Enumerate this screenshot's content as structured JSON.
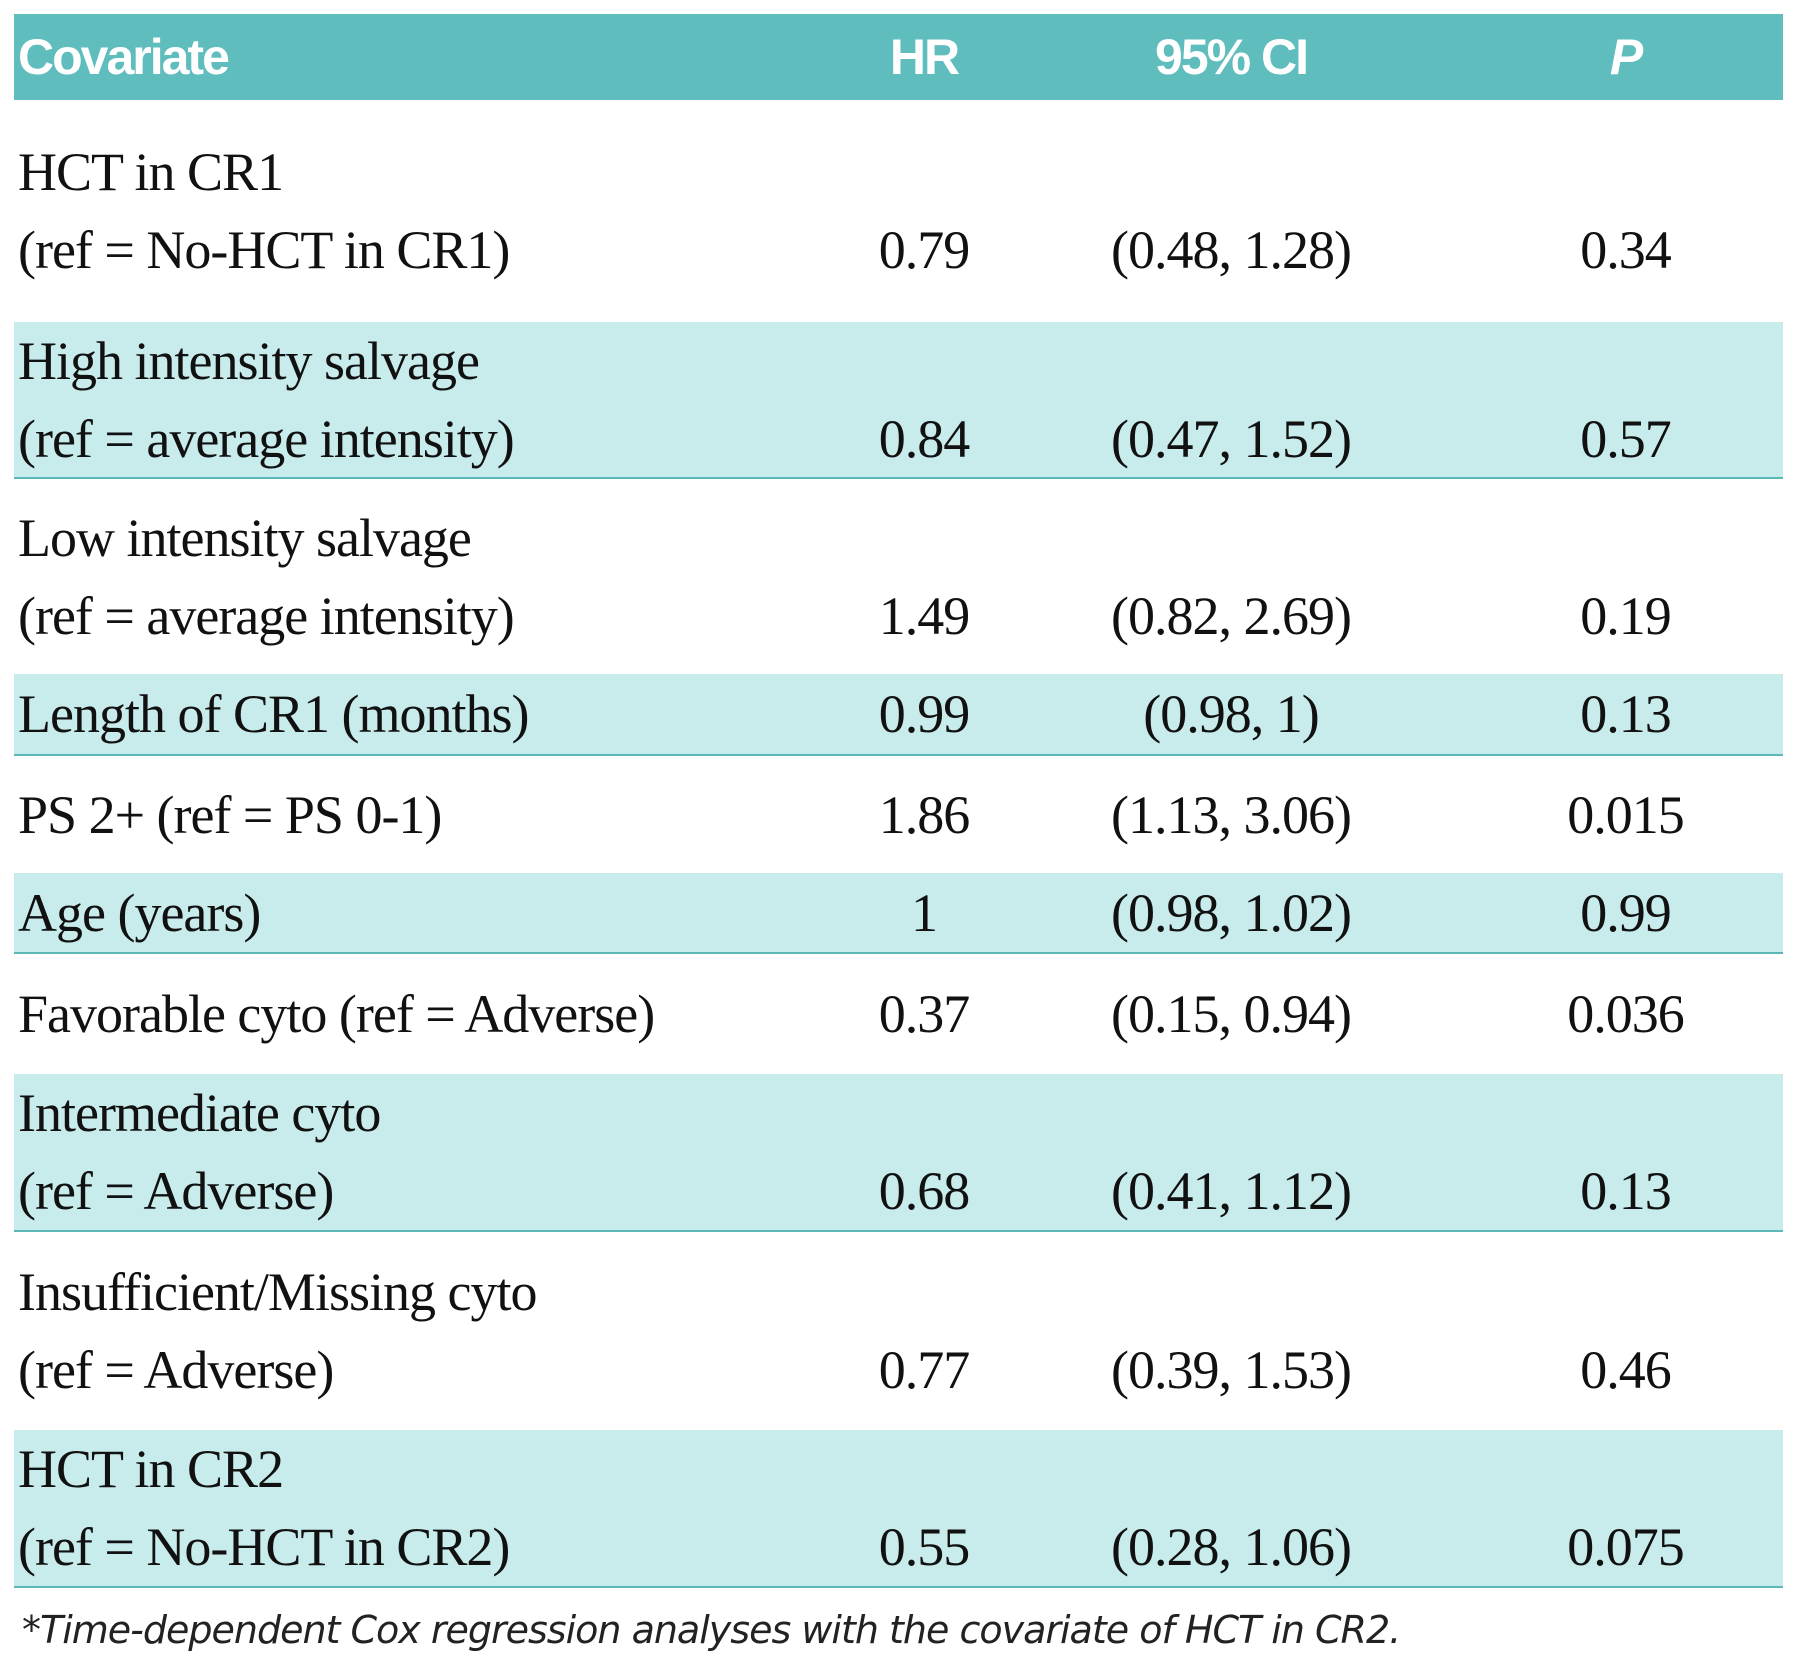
{
  "table": {
    "header": [
      "Covariate",
      "HR",
      "95% CI",
      "P"
    ],
    "rows": [
      {
        "covariate": [
          "HCT in CR1",
          "(ref = No-HCT in CR1)"
        ],
        "hr": "0.79",
        "ci": "(0.48, 1.28)",
        "p": "0.34"
      },
      {
        "covariate": [
          "High intensity salvage",
          "(ref = average intensity)"
        ],
        "hr": "0.84",
        "ci": "(0.47, 1.52)",
        "p": "0.57"
      },
      {
        "covariate": [
          "Low intensity salvage",
          "(ref = average intensity)"
        ],
        "hr": "1.49",
        "ci": "(0.82, 2.69)",
        "p": "0.19"
      },
      {
        "covariate": [
          "Length of CR1 (months)"
        ],
        "hr": "0.99",
        "ci": "(0.98, 1)",
        "p": "0.13"
      },
      {
        "covariate": [
          "PS 2+ (ref = PS 0-1)"
        ],
        "hr": "1.86",
        "ci": "(1.13, 3.06)",
        "p": "0.015"
      },
      {
        "covariate": [
          "Age (years)"
        ],
        "hr": "1",
        "ci": "(0.98, 1.02)",
        "p": "0.99"
      },
      {
        "covariate": [
          "Favorable cyto (ref = Adverse)"
        ],
        "hr": "0.37",
        "ci": "(0.15, 0.94)",
        "p": "0.036"
      },
      {
        "covariate": [
          "Intermediate cyto",
          "(ref = Adverse)"
        ],
        "hr": "0.68",
        "ci": "(0.41, 1.12)",
        "p": "0.13"
      },
      {
        "covariate": [
          "Insufficient/Missing cyto",
          "(ref = Adverse)"
        ],
        "hr": "0.77",
        "ci": "(0.39, 1.53)",
        "p": "0.46"
      },
      {
        "covariate": [
          "HCT in CR2",
          "(ref = No-HCT in CR2)"
        ],
        "hr": "0.55",
        "ci": "(0.28, 1.06)",
        "p": "0.075"
      }
    ],
    "footnote": "*Time-dependent Cox regression analyses with the covariate of HCT in CR2."
  }
}
